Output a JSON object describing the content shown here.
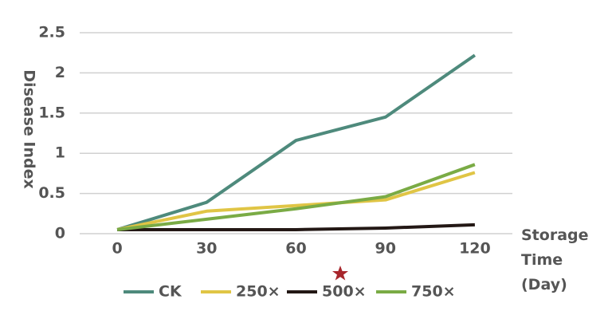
{
  "chart_data": {
    "type": "line",
    "y_label": "Disease Index",
    "x_label": "Storage Time (Day)",
    "categories": [
      "0",
      "30",
      "60",
      "90",
      "120"
    ],
    "series": [
      {
        "name": "CK",
        "color": "#4e8a7c",
        "values": [
          0.05,
          0.39,
          1.16,
          1.45,
          2.22
        ]
      },
      {
        "name": "250×",
        "color": "#e0c545",
        "values": [
          0.05,
          0.28,
          0.35,
          0.42,
          0.76
        ]
      },
      {
        "name": "500×",
        "color": "#231815",
        "values": [
          0.05,
          0.05,
          0.05,
          0.07,
          0.11
        ]
      },
      {
        "name": "750×",
        "color": "#7aab45",
        "values": [
          0.05,
          0.18,
          0.31,
          0.46,
          0.86
        ]
      }
    ],
    "ylim": [
      0,
      2.5
    ],
    "yticks": [
      0,
      0.5,
      1,
      1.5,
      2,
      2.5
    ],
    "grid": true
  }
}
